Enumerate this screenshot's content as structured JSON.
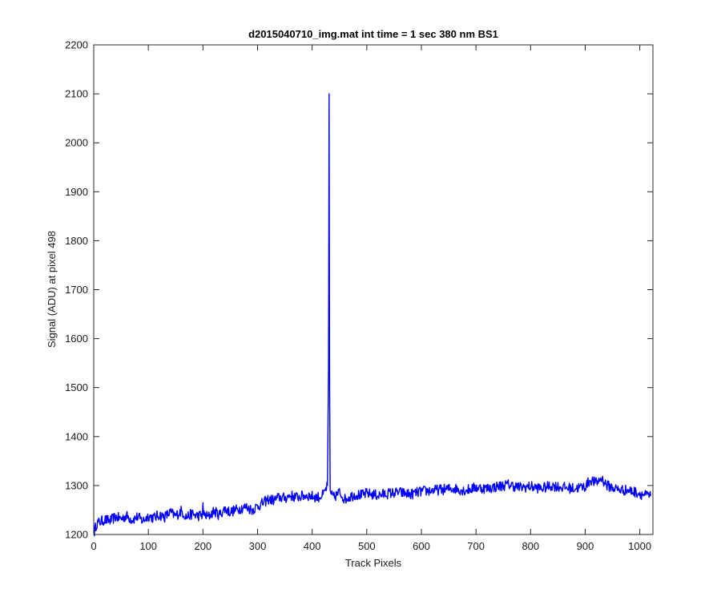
{
  "chart_data": {
    "type": "line",
    "title": "d2015040710_img.mat int time = 1 sec  380 nm BS1",
    "xlabel": "Track Pixels",
    "ylabel": "Signal (ADU) at pixel 498",
    "xlim": [
      0,
      1024
    ],
    "ylim": [
      1200,
      2200
    ],
    "xticks": [
      0,
      100,
      200,
      300,
      400,
      500,
      600,
      700,
      800,
      900,
      1000
    ],
    "yticks": [
      1200,
      1300,
      1400,
      1500,
      1600,
      1700,
      1800,
      1900,
      2000,
      2100,
      2200
    ],
    "grid": false,
    "line_color": "#0000ff",
    "series": [
      {
        "x": [
          1,
          5,
          10,
          20,
          30,
          40,
          50,
          60,
          70,
          80,
          90,
          100,
          110,
          120,
          130,
          140,
          150,
          160,
          170,
          180,
          190,
          199,
          200,
          201,
          210,
          220,
          230,
          240,
          250,
          260,
          270,
          280,
          290,
          300,
          310,
          320,
          330,
          340,
          350,
          360,
          370,
          380,
          390,
          400,
          410,
          420,
          428,
          430,
          431,
          432,
          433,
          435,
          440,
          450,
          460,
          470,
          480,
          490,
          500,
          520,
          540,
          560,
          580,
          600,
          620,
          640,
          660,
          680,
          700,
          720,
          740,
          760,
          780,
          800,
          820,
          840,
          860,
          880,
          900,
          910,
          920,
          930,
          940,
          960,
          980,
          1000,
          1010,
          1020
        ],
        "y": [
          1205,
          1222,
          1225,
          1230,
          1228,
          1236,
          1232,
          1238,
          1230,
          1236,
          1228,
          1238,
          1234,
          1240,
          1236,
          1245,
          1238,
          1248,
          1236,
          1242,
          1238,
          1240,
          1265,
          1240,
          1236,
          1248,
          1240,
          1252,
          1246,
          1250,
          1254,
          1256,
          1250,
          1258,
          1264,
          1272,
          1270,
          1276,
          1274,
          1280,
          1276,
          1278,
          1280,
          1278,
          1276,
          1280,
          1300,
          1540,
          2100,
          1500,
          1290,
          1280,
          1276,
          1286,
          1272,
          1278,
          1282,
          1280,
          1284,
          1280,
          1284,
          1286,
          1282,
          1288,
          1290,
          1292,
          1294,
          1290,
          1296,
          1294,
          1298,
          1302,
          1296,
          1298,
          1294,
          1300,
          1296,
          1294,
          1298,
          1312,
          1305,
          1315,
          1300,
          1292,
          1290,
          1284,
          1280,
          1278
        ]
      }
    ]
  }
}
